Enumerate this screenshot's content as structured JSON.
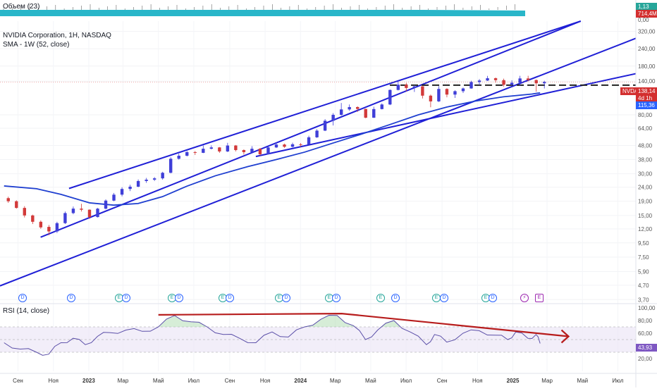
{
  "header": {
    "volume_label": "Объем (23)",
    "title": "NVIDIA Corporation, 1H, NASDAQ",
    "indicator": "SMA - 1W (52, close)",
    "rsi_label": "RSI (14, close)"
  },
  "price_axis": {
    "ticks": [
      "320,00",
      "240,00",
      "180,00",
      "140,00",
      "80,00",
      "64,00",
      "48,00",
      "38,00",
      "30,00",
      "24,00",
      "19,00",
      "15,00",
      "12,00",
      "9,50",
      "7,50",
      "5,90",
      "4,70",
      "3,70"
    ],
    "symbol_badge": "NVDA",
    "last_price": "138,14",
    "countdown": "4d 1h",
    "sma_value": "115,36",
    "volume_ticks": [
      "1,13",
      "714,4M",
      "0,00"
    ]
  },
  "rsi_axis": {
    "ticks": [
      "100,00",
      "80,00",
      "60,00",
      "40,00",
      "20,00"
    ],
    "current": "43,93"
  },
  "time_axis": [
    "Сен",
    "Ноя",
    "2023",
    "Мар",
    "Май",
    "Июл",
    "Сен",
    "Ноя",
    "2024",
    "Мар",
    "Май",
    "Июл",
    "Сен",
    "Ноя",
    "2025",
    "Мар",
    "Май",
    "Июл"
  ],
  "events": [
    {
      "x": 31,
      "t": "D",
      "k": "d"
    },
    {
      "x": 100,
      "t": "D",
      "k": "d"
    },
    {
      "x": 168,
      "t": "E",
      "k": "e"
    },
    {
      "x": 178,
      "t": "D",
      "k": "d"
    },
    {
      "x": 243,
      "t": "E",
      "k": "e"
    },
    {
      "x": 253,
      "t": "D",
      "k": "d"
    },
    {
      "x": 315,
      "t": "E",
      "k": "e"
    },
    {
      "x": 325,
      "t": "D",
      "k": "d"
    },
    {
      "x": 395,
      "t": "E",
      "k": "e"
    },
    {
      "x": 405,
      "t": "D",
      "k": "d"
    },
    {
      "x": 466,
      "t": "E",
      "k": "e"
    },
    {
      "x": 476,
      "t": "D",
      "k": "d"
    },
    {
      "x": 539,
      "t": "E",
      "k": "e"
    },
    {
      "x": 560,
      "t": "D",
      "k": "d"
    },
    {
      "x": 618,
      "t": "E",
      "k": "e"
    },
    {
      "x": 629,
      "t": "D",
      "k": "d"
    },
    {
      "x": 688,
      "t": "E",
      "k": "e"
    },
    {
      "x": 698,
      "t": "D",
      "k": "d"
    },
    {
      "x": 743,
      "t": "⚡",
      "k": "q"
    },
    {
      "x": 764,
      "t": "E",
      "k": "f"
    }
  ],
  "colors": {
    "up": "#3f3fd8",
    "down": "#d23a3a",
    "channel": "#1f1fd6",
    "sma": "#1f3fd0",
    "volume": "#29b6c9",
    "resistance": "#222222",
    "rsi_line": "#5b4fa8",
    "rsi_trend": "#b71c1c",
    "price_badge": "#d32f2f",
    "sma_badge": "#2962ff",
    "rsi_badge": "#7e57c2"
  },
  "chart_data": {
    "type": "candlestick",
    "price_scale": "log",
    "y_range": [
      3.5,
      380
    ],
    "x_range": [
      "2022-08",
      "2025-08"
    ],
    "candles": [
      [
        "2022-08-08",
        20,
        19,
        20.5,
        18.5
      ],
      [
        "2022-08-22",
        19,
        17,
        19.3,
        16.8
      ],
      [
        "2022-09-05",
        17,
        15,
        17.5,
        14.5
      ],
      [
        "2022-09-19",
        15,
        13.5,
        15.2,
        13
      ],
      [
        "2022-10-03",
        13.5,
        12.3,
        13.8,
        12
      ],
      [
        "2022-10-17",
        12.4,
        11.5,
        12.8,
        10.8
      ],
      [
        "2022-10-31",
        11.5,
        13.2,
        13.5,
        11.2
      ],
      [
        "2022-11-14",
        13.2,
        15.6,
        16,
        13
      ],
      [
        "2022-11-28",
        15.6,
        16.8,
        17.4,
        15.3
      ],
      [
        "2022-12-12",
        16.8,
        16.5,
        18.2,
        16
      ],
      [
        "2022-12-26",
        16.5,
        14.6,
        16.6,
        14.2
      ],
      [
        "2023-01-09",
        14.6,
        16.8,
        17,
        14.5
      ],
      [
        "2023-01-23",
        16.8,
        19.2,
        19.6,
        16.6
      ],
      [
        "2023-02-06",
        19.2,
        21.2,
        21.8,
        19
      ],
      [
        "2023-02-20",
        21.2,
        23.3,
        24,
        20.6
      ],
      [
        "2023-03-06",
        23.3,
        24.2,
        25,
        22.5
      ],
      [
        "2023-03-20",
        24.2,
        26.6,
        27.3,
        24
      ],
      [
        "2023-04-03",
        26.6,
        27.2,
        28,
        25.8
      ],
      [
        "2023-04-17",
        27.2,
        27.8,
        28.4,
        26.6
      ],
      [
        "2023-05-01",
        27.8,
        30.5,
        31,
        27.2
      ],
      [
        "2023-05-15",
        30.5,
        38.5,
        39.5,
        30.2
      ],
      [
        "2023-05-29",
        38.5,
        40.5,
        41.9,
        38
      ],
      [
        "2023-06-12",
        40.5,
        43,
        43.8,
        40
      ],
      [
        "2023-06-26",
        43,
        42.5,
        43.8,
        41
      ],
      [
        "2023-07-10",
        42.5,
        45.5,
        48,
        42.3
      ],
      [
        "2023-07-24",
        45.5,
        46.5,
        48.1,
        45
      ],
      [
        "2023-08-07",
        46.5,
        43.5,
        46.8,
        42.5
      ],
      [
        "2023-08-21",
        43.5,
        48,
        50.2,
        43
      ],
      [
        "2023-09-04",
        48,
        44.5,
        48.4,
        43.5
      ],
      [
        "2023-09-18",
        44.5,
        43,
        45,
        41.3
      ],
      [
        "2023-10-02",
        43,
        45.5,
        47.5,
        42.5
      ],
      [
        "2023-10-16",
        45.5,
        41.5,
        46,
        40.5
      ],
      [
        "2023-10-30",
        41.5,
        46.5,
        47,
        41.3
      ],
      [
        "2023-11-13",
        46.5,
        48.8,
        50.5,
        46
      ],
      [
        "2023-11-27",
        48.8,
        47,
        49.5,
        46.2
      ],
      [
        "2023-12-11",
        47,
        49,
        50.3,
        46.5
      ],
      [
        "2023-12-25",
        49,
        48.8,
        50,
        47
      ],
      [
        "2024-01-08",
        48.8,
        55,
        56.5,
        48.5
      ],
      [
        "2024-01-22",
        55,
        61.5,
        63,
        54.5
      ],
      [
        "2024-02-05",
        61.5,
        72.5,
        74.5,
        61
      ],
      [
        "2024-02-19",
        72.5,
        80,
        82.3,
        67
      ],
      [
        "2024-03-04",
        80,
        87.5,
        97.4,
        79
      ],
      [
        "2024-03-18",
        87.5,
        91,
        95,
        85.5
      ],
      [
        "2024-04-01",
        91,
        88.2,
        92.2,
        84
      ],
      [
        "2024-04-15",
        88.2,
        76.2,
        88.5,
        75.6
      ],
      [
        "2024-04-29",
        76.2,
        88,
        91.5,
        76
      ],
      [
        "2024-05-13",
        88,
        95,
        96.8,
        87.5
      ],
      [
        "2024-05-27",
        95,
        121,
        122,
        94
      ],
      [
        "2024-06-10",
        121,
        132,
        140.8,
        120
      ],
      [
        "2024-06-24",
        132,
        125,
        136,
        118.1
      ],
      [
        "2024-07-08",
        125,
        128.5,
        131,
        117
      ],
      [
        "2024-07-22",
        128.5,
        110,
        128.8,
        105
      ],
      [
        "2024-08-05",
        110,
        100,
        112,
        90.7
      ],
      [
        "2024-08-19",
        100,
        123,
        129,
        99
      ],
      [
        "2024-09-02",
        123,
        112,
        124.5,
        107
      ],
      [
        "2024-09-16",
        112,
        118.5,
        120.3,
        106
      ],
      [
        "2024-09-30",
        118.5,
        124,
        126,
        115
      ],
      [
        "2024-10-14",
        124,
        138,
        140.9,
        123.5
      ],
      [
        "2024-10-28",
        138,
        141.5,
        145,
        131
      ],
      [
        "2024-11-11",
        141.5,
        147,
        152.9,
        140.4
      ],
      [
        "2024-11-25",
        147,
        142.4,
        148.8,
        136.6
      ],
      [
        "2024-12-09",
        142.4,
        131.8,
        146,
        128
      ],
      [
        "2024-12-23",
        131.8,
        136.4,
        141.9,
        130
      ],
      [
        "2025-01-06",
        136.4,
        146.5,
        153.1,
        129.5
      ],
      [
        "2025-01-20",
        146.5,
        142.6,
        153.1,
        139.6
      ],
      [
        "2025-02-03",
        142.6,
        135.2,
        144,
        117.5
      ],
      [
        "2025-02-17",
        135.2,
        138.14,
        141,
        124
      ]
    ],
    "sma_52w": [
      [
        "2022-08-08",
        24.5
      ],
      [
        "2022-10-03",
        23.4
      ],
      [
        "2022-11-14",
        21.3
      ],
      [
        "2023-01-02",
        18.5
      ],
      [
        "2023-02-13",
        17.8
      ],
      [
        "2023-03-27",
        18.3
      ],
      [
        "2023-05-08",
        20.5
      ],
      [
        "2023-06-19",
        24.4
      ],
      [
        "2023-08-07",
        29
      ],
      [
        "2023-10-02",
        33.8
      ],
      [
        "2023-11-20",
        38
      ],
      [
        "2024-01-08",
        43
      ],
      [
        "2024-02-26",
        50
      ],
      [
        "2024-04-15",
        58
      ],
      [
        "2024-06-03",
        68
      ],
      [
        "2024-07-22",
        80
      ],
      [
        "2024-09-09",
        91
      ],
      [
        "2024-10-28",
        100.5
      ],
      [
        "2024-12-16",
        108
      ],
      [
        "2025-02-03",
        113
      ],
      [
        "2025-02-17",
        115.36
      ]
    ],
    "channel_lines": [
      [
        [
          "2022-10-10",
          10.45
        ],
        [
          "2025-04-28",
          380
        ]
      ],
      [
        [
          "2022-11-28",
          23.5
        ],
        [
          "2025-04-28",
          380
        ]
      ],
      [
        [
          "2022-08-01",
          4.65
        ],
        [
          "2025-08-05",
          290
        ]
      ],
      [
        [
          "2023-10-16",
          40
        ],
        [
          "2025-08-05",
          160
        ]
      ]
    ],
    "resistance_level": 131,
    "rsi": {
      "range": [
        0,
        100
      ],
      "bands": [
        30,
        70
      ],
      "values": [
        [
          "2022-08-08",
          45
        ],
        [
          "2022-09-05",
          35
        ],
        [
          "2022-10-03",
          30
        ],
        [
          "2022-10-24",
          27
        ],
        [
          "2022-11-14",
          45
        ],
        [
          "2022-12-05",
          52
        ],
        [
          "2022-12-26",
          42
        ],
        [
          "2023-01-16",
          55
        ],
        [
          "2023-02-06",
          61
        ],
        [
          "2023-03-06",
          65
        ],
        [
          "2023-04-03",
          63
        ],
        [
          "2023-05-01",
          70
        ],
        [
          "2023-05-29",
          88
        ],
        [
          "2023-06-26",
          78
        ],
        [
          "2023-07-24",
          70
        ],
        [
          "2023-08-21",
          58
        ],
        [
          "2023-09-18",
          52
        ],
        [
          "2023-10-16",
          45
        ],
        [
          "2023-11-13",
          62
        ],
        [
          "2023-12-11",
          54
        ],
        [
          "2024-01-08",
          70
        ],
        [
          "2024-02-05",
          82
        ],
        [
          "2024-03-04",
          88
        ],
        [
          "2024-04-01",
          72
        ],
        [
          "2024-04-22",
          50
        ],
        [
          "2024-05-13",
          65
        ],
        [
          "2024-06-10",
          80
        ],
        [
          "2024-07-08",
          62
        ],
        [
          "2024-08-05",
          42
        ],
        [
          "2024-08-19",
          58
        ],
        [
          "2024-09-09",
          46
        ],
        [
          "2024-10-07",
          60
        ],
        [
          "2024-11-04",
          64
        ],
        [
          "2024-12-02",
          57
        ],
        [
          "2024-12-23",
          50
        ],
        [
          "2025-01-06",
          62
        ],
        [
          "2025-01-27",
          52
        ],
        [
          "2025-02-10",
          58
        ],
        [
          "2025-02-17",
          43.93
        ]
      ],
      "trendlines": [
        [
          [
            "2023-05-01",
            89
          ],
          [
            "2024-03-12",
            91
          ],
          [
            "2025-04-07",
            55
          ]
        ]
      ]
    }
  }
}
